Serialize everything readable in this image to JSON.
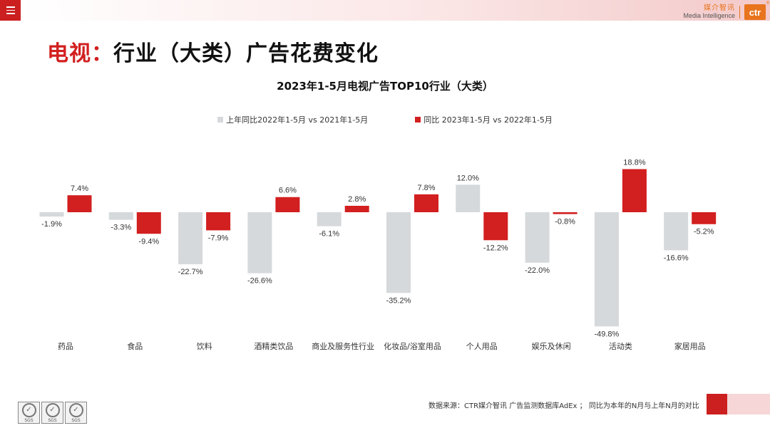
{
  "header": {
    "menu_icon": "menu-icon",
    "logo_cn": "媒介智讯",
    "logo_en": "Media Intelligence",
    "logo_mark": "ctr",
    "logo_reg": "®"
  },
  "page_title": {
    "accent": "电视：",
    "main": "行业（大类）广告花费变化"
  },
  "footer": {
    "source": "数据来源：CTR媒介智讯 广告监测数据库AdEx ； 同比为本年的N月与上年N月的对比",
    "certification": [
      {
        "icon": "sgs-badge-icon",
        "label": "SGS"
      },
      {
        "icon": "sgs-badge-icon",
        "label": "SGS"
      },
      {
        "icon": "sgs-badge-icon",
        "label": "SGS"
      }
    ]
  },
  "colors": {
    "accent": "#d21f1f",
    "series_prev": "#d5d9db",
    "series_curr": "#d21f1f"
  },
  "chart_data": {
    "type": "bar",
    "title": "2023年1-5月电视广告TOP10行业（大类）",
    "categories": [
      "药品",
      "食品",
      "饮料",
      "酒精类饮品",
      "商业及服务性行业",
      "化妆品/浴室用品",
      "个人用品",
      "娱乐及休闲",
      "活动类",
      "家居用品"
    ],
    "series": [
      {
        "name": "上年同比2022年1-5月  vs  2021年1-5月",
        "color": "#d5d9db",
        "values": [
          -1.9,
          -3.3,
          -22.7,
          -26.6,
          -6.1,
          -35.2,
          12.0,
          -22.0,
          -49.8,
          -16.6
        ],
        "labels": [
          "-1.9%",
          "-3.3%",
          "-22.7%",
          "-26.6%",
          "-6.1%",
          "-35.2%",
          "12.0%",
          "-22.0%",
          "-49.8%",
          "-16.6%"
        ]
      },
      {
        "name": "同比 2023年1-5月  vs  2022年1-5月",
        "color": "#d21f1f",
        "values": [
          7.4,
          -9.4,
          -7.9,
          6.6,
          2.8,
          7.8,
          -12.2,
          -0.8,
          18.8,
          -5.2
        ],
        "labels": [
          "7.4%",
          "-9.4%",
          "-7.9%",
          "6.6%",
          "2.8%",
          "7.8%",
          "-12.2%",
          "-0.8%",
          "18.8%",
          "-5.2%"
        ]
      }
    ],
    "xlabel": "",
    "ylabel": "",
    "ylim": [
      -50,
      20
    ],
    "grid": false,
    "legend_position": "top"
  }
}
